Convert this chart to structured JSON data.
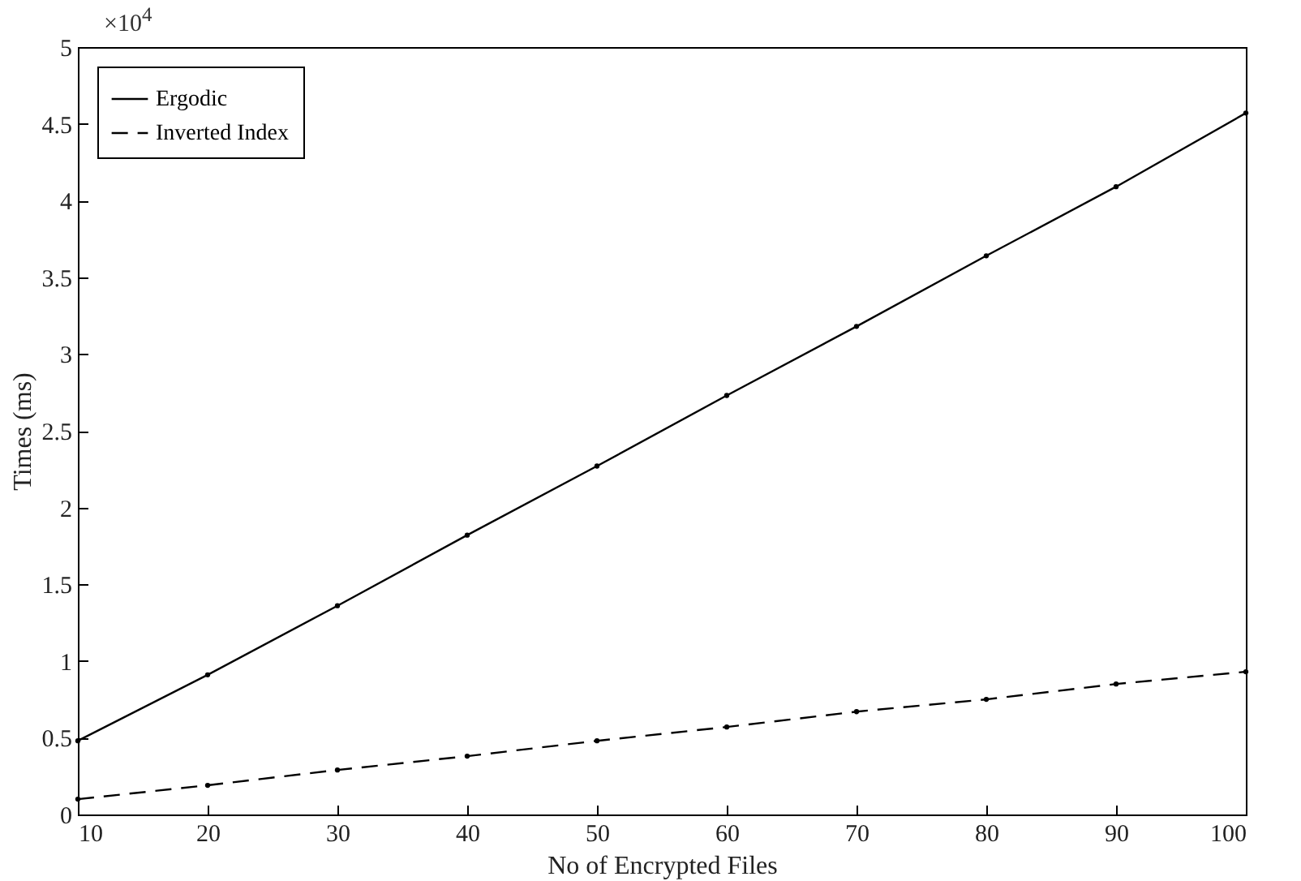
{
  "chart_data": {
    "type": "line",
    "xlabel": "No of Encrypted Files",
    "ylabel": "Times (ms)",
    "x": [
      10,
      20,
      30,
      40,
      50,
      60,
      70,
      80,
      90,
      100
    ],
    "series": [
      {
        "name": "Ergodic",
        "color": "#000000",
        "line_style": "solid",
        "values": [
          0.48,
          0.91,
          1.36,
          1.82,
          2.27,
          2.73,
          3.18,
          3.64,
          4.09,
          4.57
        ]
      },
      {
        "name": "Inverted Index",
        "color": "#000000",
        "line_style": "dashed",
        "values": [
          0.1,
          0.19,
          0.29,
          0.38,
          0.48,
          0.57,
          0.67,
          0.75,
          0.85,
          0.93
        ]
      }
    ],
    "xlim": [
      10,
      100
    ],
    "xticks": [
      10,
      20,
      30,
      40,
      50,
      60,
      70,
      80,
      90,
      100
    ],
    "ylim": [
      0,
      5
    ],
    "yticks": [
      0,
      0.5,
      1,
      1.5,
      2,
      2.5,
      3,
      3.5,
      4,
      4.5,
      5
    ],
    "annotations": [
      "×10$^{4}$"
    ],
    "grid": false,
    "legend": "top left",
    "marker": "circle"
  }
}
